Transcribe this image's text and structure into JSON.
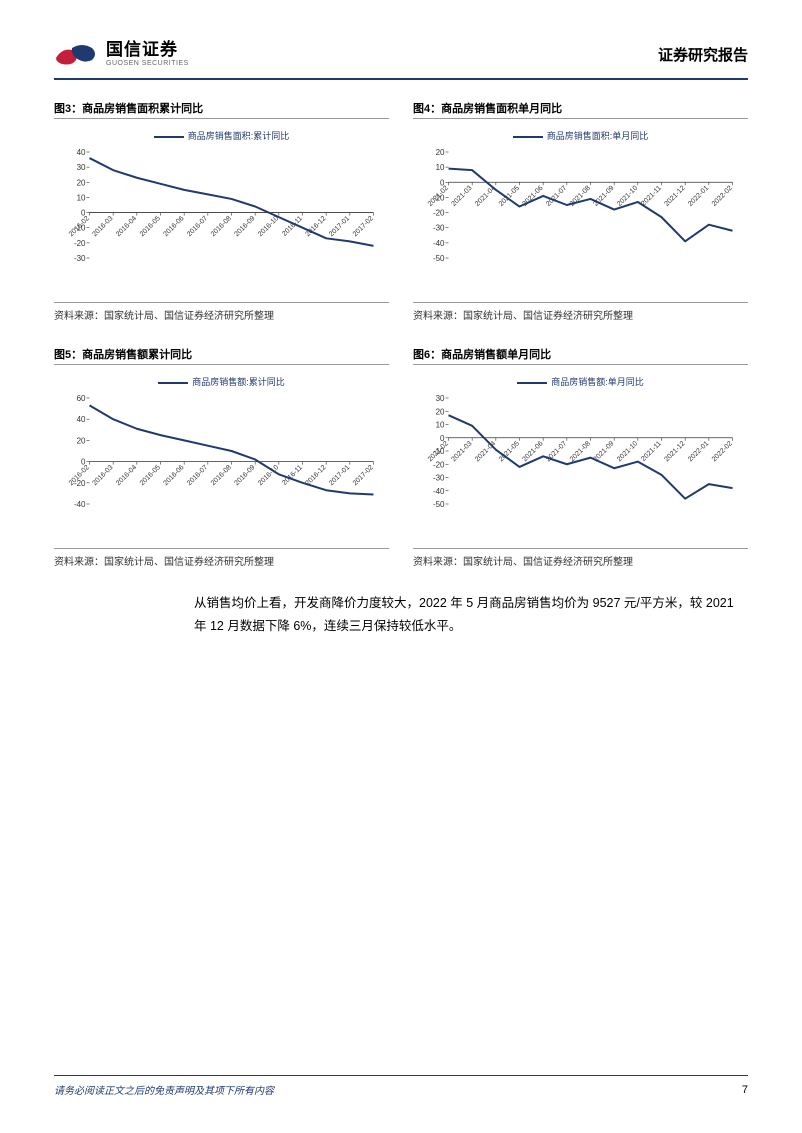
{
  "header": {
    "logo_cn": "国信证券",
    "logo_en": "GUOSEN SECURITIES",
    "title": "证券研究报告"
  },
  "footer": {
    "disclaimer": "请务必阅读正文之后的免责声明及其项下所有内容",
    "page_number": "7"
  },
  "body_paragraph": "从销售均价上看，开发商降价力度较大，2022 年 5 月商品房销售均价为 9527 元/平方米，较 2021 年 12 月数据下降 6%，连续三月保持较低水平。",
  "colors": {
    "series_color": "#1f3a6e",
    "axis_color": "#333333",
    "border_color": "#999999",
    "header_border": "#1f3a6e"
  },
  "charts": [
    {
      "id": "chart3",
      "caption": "图3：商品房销售面积累计同比",
      "legend": "商品房销售面积:累计同比",
      "source": "资料来源：国家统计局、国信证券经济研究所整理",
      "type": "line",
      "ylim": [
        -30,
        40
      ],
      "ytick_step": 10,
      "x_labels": [
        "2016-02",
        "2016-03",
        "2016-04",
        "2016-05",
        "2016-06",
        "2016-07",
        "2016-08",
        "2016-09",
        "2016-10",
        "2016-11",
        "2016-12",
        "2017-01",
        "2017-02"
      ],
      "values": [
        36,
        28,
        23,
        19,
        15,
        12,
        9,
        4,
        -3,
        -10,
        -17,
        -19,
        -22
      ],
      "title_fontsize": 11,
      "label_fontsize": 8
    },
    {
      "id": "chart4",
      "caption": "图4：商品房销售面积单月同比",
      "legend": "商品房销售面积:单月同比",
      "source": "资料来源：国家统计局、国信证券经济研究所整理",
      "type": "line",
      "ylim": [
        -50,
        20
      ],
      "ytick_step": 10,
      "x_labels": [
        "2021-02",
        "2021-03",
        "2021-04",
        "2021-05",
        "2021-06",
        "2021-07",
        "2021-08",
        "2021-09",
        "2021-10",
        "2021-11",
        "2021-12",
        "2022-01",
        "2022-02"
      ],
      "values": [
        9,
        8,
        -5,
        -16,
        -9,
        -15,
        -11,
        -18,
        -13,
        -23,
        -39,
        -28,
        -32
      ],
      "title_fontsize": 11,
      "label_fontsize": 8
    },
    {
      "id": "chart5",
      "caption": "图5：商品房销售额累计同比",
      "legend": "商品房销售额:累计同比",
      "source": "资料来源：国家统计局、国信证券经济研究所整理",
      "type": "line",
      "ylim": [
        -40,
        60
      ],
      "ytick_step": 20,
      "x_labels": [
        "2016-02",
        "2016-03",
        "2016-04",
        "2016-05",
        "2016-06",
        "2016-07",
        "2016-08",
        "2016-09",
        "2016-10",
        "2016-11",
        "2016-12",
        "2017-01",
        "2017-02"
      ],
      "values": [
        53,
        40,
        31,
        25,
        20,
        15,
        10,
        2,
        -12,
        -20,
        -27,
        -30,
        -31
      ],
      "title_fontsize": 11,
      "label_fontsize": 8
    },
    {
      "id": "chart6",
      "caption": "图6：商品房销售额单月同比",
      "legend": "商品房销售额:单月同比",
      "source": "资料来源：国家统计局、国信证券经济研究所整理",
      "type": "line",
      "ylim": [
        -50,
        30
      ],
      "ytick_step": 10,
      "x_labels": [
        "2021-02",
        "2021-03",
        "2021-04",
        "2021-05",
        "2021-06",
        "2021-07",
        "2021-08",
        "2021-09",
        "2021-10",
        "2021-11",
        "2021-12",
        "2022-01",
        "2022-02"
      ],
      "values": [
        17,
        9,
        -9,
        -22,
        -14,
        -20,
        -15,
        -23,
        -18,
        -28,
        -46,
        -35,
        -38
      ],
      "title_fontsize": 11,
      "label_fontsize": 8
    }
  ]
}
